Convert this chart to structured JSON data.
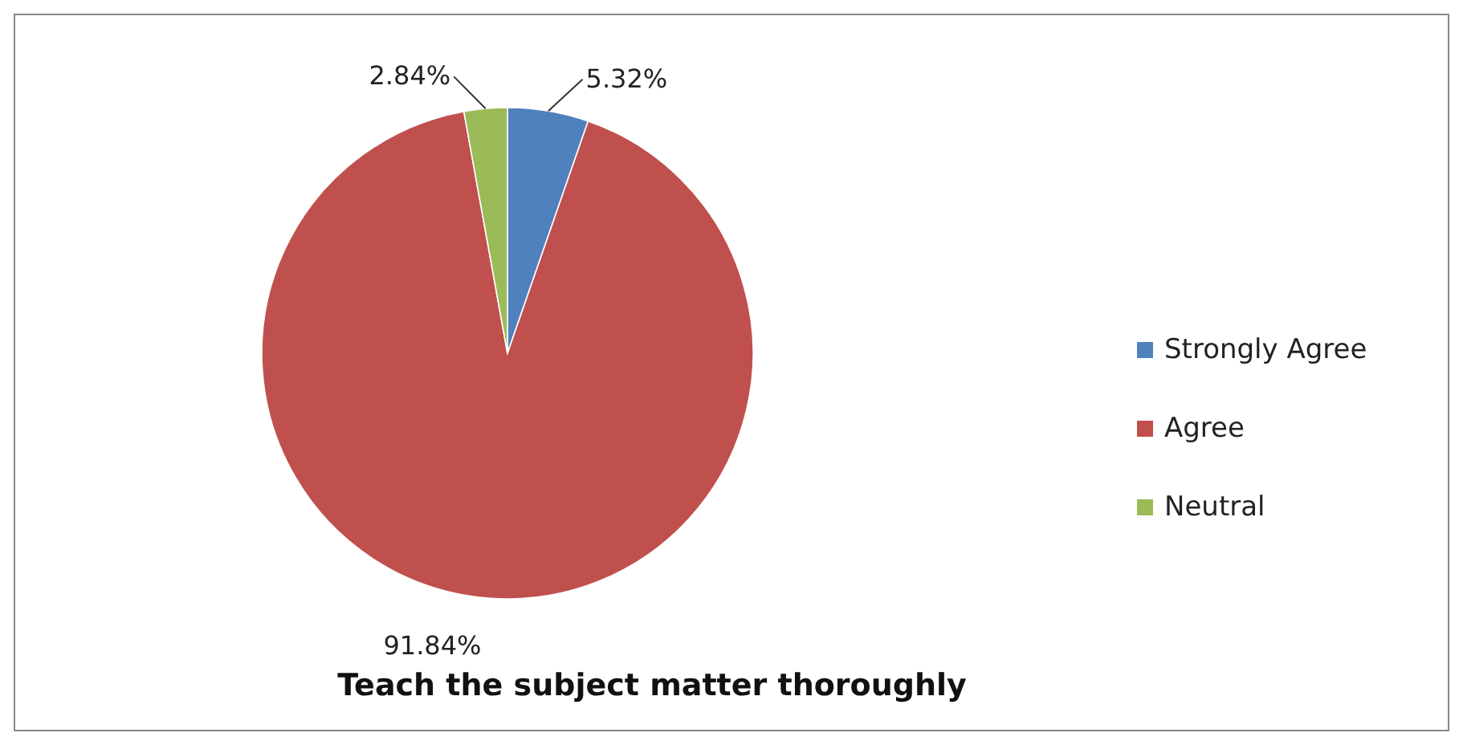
{
  "chart_data": {
    "type": "pie",
    "title": "Teach the subject matter thoroughly",
    "categories": [
      "Strongly Agree",
      "Agree",
      "Neutral"
    ],
    "values": [
      5.32,
      91.84,
      2.84
    ],
    "colors": [
      "#4f81bd",
      "#c0504d",
      "#9bbb59"
    ],
    "value_labels": [
      "5.32%",
      "91.84%",
      "2.84%"
    ],
    "legend": "right"
  }
}
